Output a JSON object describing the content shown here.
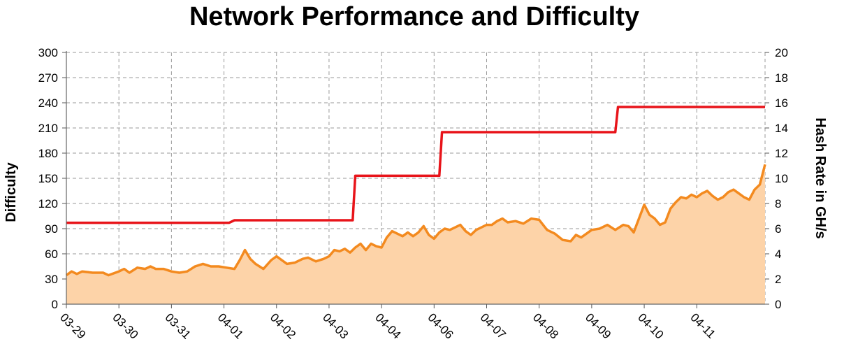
{
  "chart_data": {
    "type": "line",
    "title": "Network Performance and Difficulty",
    "ylabel": "Difficulty",
    "y2label": "Hash Rate in GH/s",
    "xlabel": "",
    "ylim": [
      0,
      300
    ],
    "y2lim": [
      0,
      20
    ],
    "yticks": [
      0,
      30,
      60,
      90,
      120,
      150,
      180,
      210,
      240,
      270,
      300
    ],
    "y2ticks": [
      0,
      2,
      4,
      6,
      8,
      10,
      12,
      14,
      16,
      18,
      20
    ],
    "grid": true,
    "x_categories": [
      "03-29",
      "03-30",
      "03-31",
      "04-01",
      "04-02",
      "04-03",
      "04-04",
      "04-06",
      "04-07",
      "04-08",
      "04-09",
      "04-10",
      "04-11"
    ],
    "xlim": [
      0,
      13.3
    ],
    "series": [
      {
        "role": "difficulty",
        "axis": "left",
        "color": "#e8141a",
        "points": [
          [
            0,
            97
          ],
          [
            3.1,
            97
          ],
          [
            3.2,
            100
          ],
          [
            5.45,
            100
          ],
          [
            5.5,
            153
          ],
          [
            7.1,
            153
          ],
          [
            7.15,
            205
          ],
          [
            10.45,
            205
          ],
          [
            10.5,
            235
          ],
          [
            13.3,
            235
          ]
        ]
      },
      {
        "role": "hash_rate",
        "axis": "right",
        "color": "#f38a1f",
        "fill": "#fdd3a8",
        "points": [
          [
            0,
            2.3
          ],
          [
            0.1,
            2.6
          ],
          [
            0.2,
            2.4
          ],
          [
            0.3,
            2.6
          ],
          [
            0.5,
            2.5
          ],
          [
            0.7,
            2.5
          ],
          [
            0.8,
            2.3
          ],
          [
            1.0,
            2.6
          ],
          [
            1.1,
            2.8
          ],
          [
            1.2,
            2.5
          ],
          [
            1.35,
            2.9
          ],
          [
            1.5,
            2.8
          ],
          [
            1.6,
            3.0
          ],
          [
            1.7,
            2.8
          ],
          [
            1.85,
            2.8
          ],
          [
            2.0,
            2.6
          ],
          [
            2.15,
            2.5
          ],
          [
            2.3,
            2.6
          ],
          [
            2.45,
            3.0
          ],
          [
            2.6,
            3.2
          ],
          [
            2.75,
            3.0
          ],
          [
            2.9,
            3.0
          ],
          [
            3.05,
            2.9
          ],
          [
            3.2,
            2.8
          ],
          [
            3.3,
            3.5
          ],
          [
            3.4,
            4.3
          ],
          [
            3.5,
            3.6
          ],
          [
            3.6,
            3.2
          ],
          [
            3.75,
            2.8
          ],
          [
            3.9,
            3.5
          ],
          [
            4.0,
            3.8
          ],
          [
            4.1,
            3.5
          ],
          [
            4.2,
            3.2
          ],
          [
            4.35,
            3.3
          ],
          [
            4.5,
            3.6
          ],
          [
            4.6,
            3.7
          ],
          [
            4.75,
            3.4
          ],
          [
            4.9,
            3.6
          ],
          [
            5.0,
            3.8
          ],
          [
            5.1,
            4.3
          ],
          [
            5.2,
            4.2
          ],
          [
            5.3,
            4.4
          ],
          [
            5.4,
            4.1
          ],
          [
            5.5,
            4.5
          ],
          [
            5.6,
            4.8
          ],
          [
            5.7,
            4.3
          ],
          [
            5.8,
            4.8
          ],
          [
            5.9,
            4.6
          ],
          [
            6.0,
            4.5
          ],
          [
            6.1,
            5.3
          ],
          [
            6.2,
            5.8
          ],
          [
            6.3,
            5.6
          ],
          [
            6.4,
            5.4
          ],
          [
            6.5,
            5.7
          ],
          [
            6.6,
            5.4
          ],
          [
            6.7,
            5.7
          ],
          [
            6.8,
            6.2
          ],
          [
            6.9,
            5.5
          ],
          [
            7.0,
            5.2
          ],
          [
            7.1,
            5.7
          ],
          [
            7.2,
            6.0
          ],
          [
            7.3,
            5.9
          ],
          [
            7.4,
            6.1
          ],
          [
            7.5,
            6.3
          ],
          [
            7.6,
            5.8
          ],
          [
            7.7,
            5.5
          ],
          [
            7.8,
            5.9
          ],
          [
            7.9,
            6.1
          ],
          [
            8.0,
            6.3
          ],
          [
            8.1,
            6.3
          ],
          [
            8.2,
            6.6
          ],
          [
            8.3,
            6.8
          ],
          [
            8.4,
            6.5
          ],
          [
            8.55,
            6.6
          ],
          [
            8.7,
            6.4
          ],
          [
            8.85,
            6.8
          ],
          [
            9.0,
            6.7
          ],
          [
            9.15,
            5.9
          ],
          [
            9.3,
            5.6
          ],
          [
            9.45,
            5.1
          ],
          [
            9.6,
            5.0
          ],
          [
            9.7,
            5.5
          ],
          [
            9.8,
            5.3
          ],
          [
            9.9,
            5.6
          ],
          [
            10.0,
            5.9
          ],
          [
            10.15,
            6.0
          ],
          [
            10.3,
            6.3
          ],
          [
            10.45,
            5.9
          ],
          [
            10.6,
            6.3
          ],
          [
            10.7,
            6.2
          ],
          [
            10.8,
            5.7
          ],
          [
            10.9,
            6.8
          ],
          [
            11.0,
            7.9
          ],
          [
            11.1,
            7.1
          ],
          [
            11.2,
            6.8
          ],
          [
            11.3,
            6.3
          ],
          [
            11.4,
            6.5
          ],
          [
            11.5,
            7.6
          ],
          [
            11.6,
            8.1
          ],
          [
            11.7,
            8.5
          ],
          [
            11.8,
            8.4
          ],
          [
            11.9,
            8.7
          ],
          [
            12.0,
            8.5
          ],
          [
            12.1,
            8.8
          ],
          [
            12.2,
            9.0
          ],
          [
            12.3,
            8.6
          ],
          [
            12.4,
            8.3
          ],
          [
            12.5,
            8.5
          ],
          [
            12.6,
            8.9
          ],
          [
            12.7,
            9.1
          ],
          [
            12.8,
            8.8
          ],
          [
            12.9,
            8.5
          ],
          [
            13.0,
            8.3
          ],
          [
            13.1,
            9.1
          ],
          [
            13.2,
            9.5
          ],
          [
            13.3,
            11.1
          ]
        ]
      }
    ]
  }
}
